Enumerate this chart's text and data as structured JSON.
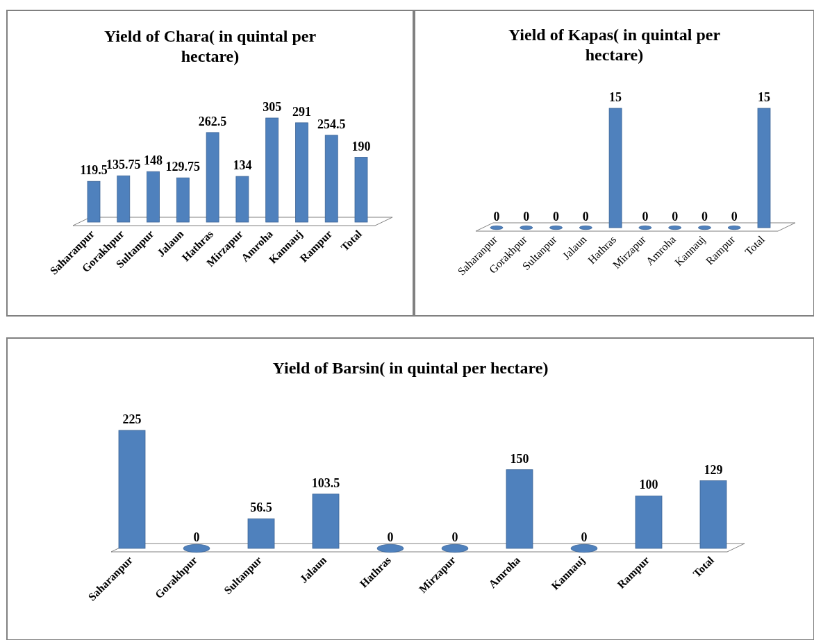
{
  "chart_data": [
    {
      "type": "bar",
      "title": "Yield  of Chara( in quintal per hectare)",
      "categories": [
        "Saharanpur",
        "Gorakhpur",
        "Sultanpur",
        "Jalaun",
        "Hathras",
        "Mirzapur",
        "Amroha",
        "Kannauj",
        "Rampur",
        "Total"
      ],
      "values": [
        119.5,
        135.75,
        148,
        129.75,
        262.5,
        134,
        305,
        291,
        254.5,
        190
      ],
      "color": "#4f81bd",
      "data_labels": true,
      "tick_labels": "x"
    },
    {
      "type": "bar",
      "title": "Yield of Kapas( in quintal per hectare)",
      "categories": [
        "Saharanpur",
        "Gorakhpur",
        "Sultanpur",
        "Jalaun",
        "Hathras",
        "Mirzapur",
        "Amroha",
        "Kannauj",
        "Rampur",
        "Total"
      ],
      "values": [
        0,
        0,
        0,
        0,
        15,
        0,
        0,
        0,
        0,
        15
      ],
      "color": "#4f81bd",
      "data_labels": true,
      "tick_labels": "x"
    },
    {
      "type": "bar",
      "title": "Yield  of Barsin( in quintal per hectare)",
      "categories": [
        "Saharanpur",
        "Gorakhpur",
        "Sultanpur",
        "Jalaun",
        "Hathras",
        "Mirzapur",
        "Amroha",
        "Kannauj",
        "Rampur",
        "Total"
      ],
      "values": [
        225,
        0,
        56.5,
        103.5,
        0,
        0,
        150,
        0,
        100,
        129
      ],
      "color": "#4f81bd",
      "data_labels": true,
      "tick_labels": "x"
    }
  ]
}
